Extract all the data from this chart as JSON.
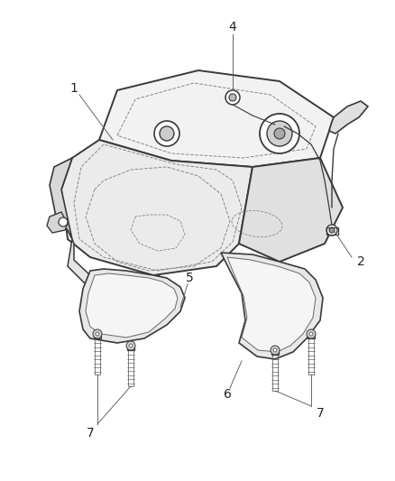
{
  "background_color": "#ffffff",
  "line_color": "#3a3a3a",
  "light_line": "#666666",
  "dashed_color": "#888888",
  "label_color": "#222222",
  "figsize": [
    4.38,
    5.33
  ],
  "dpi": 100,
  "tank_fill": "#f0f0f0",
  "tank_shadow": "#d8d8d8",
  "tank_top": "#e8e8e8"
}
